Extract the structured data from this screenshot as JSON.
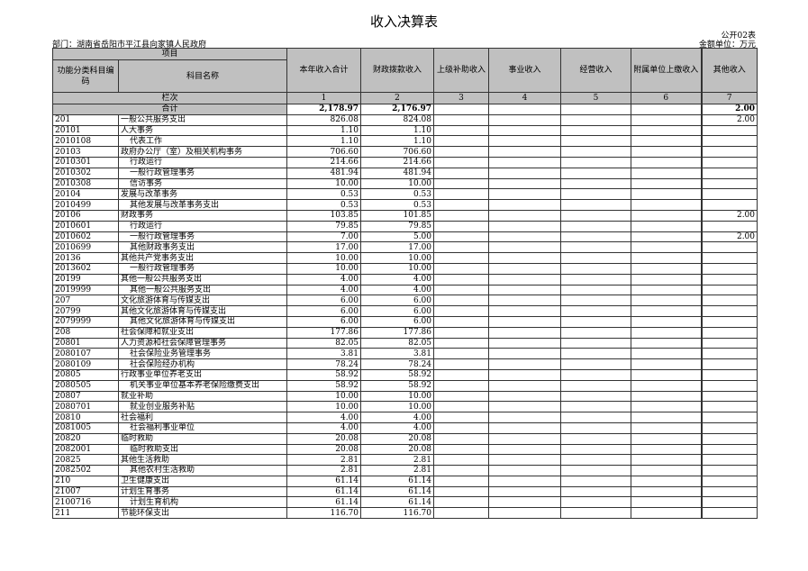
{
  "title": "收入决算表",
  "form_no": "公开02表",
  "department": "部门：湖南省岳阳市平江县向家镇人民政府",
  "unit": "金额单位：万元",
  "headers": {
    "item": "项目",
    "code": "功能分类科目编码",
    "name": "科目名称",
    "col1": "本年收入合计",
    "col2": "财政拨款收入",
    "col3": "上级补助收入",
    "col4": "事业收入",
    "col5": "经营收入",
    "col6": "附属单位上缴收入",
    "col7": "其他收入"
  },
  "column_index": {
    "label": "栏次",
    "nums": [
      "1",
      "2",
      "3",
      "4",
      "5",
      "6",
      "7"
    ]
  },
  "total": {
    "label": "合计",
    "col1": "2,178.97",
    "col2": "2,176.97",
    "col7": "2.00"
  },
  "rows": [
    [
      "201",
      "一般公共服务支出",
      0,
      "826.08",
      "824.08",
      "2.00"
    ],
    [
      "20101",
      "人大事务",
      0,
      "1.10",
      "1.10",
      ""
    ],
    [
      "2010108",
      "代表工作",
      1,
      "1.10",
      "1.10",
      ""
    ],
    [
      "20103",
      "政府办公厅（室）及相关机构事务",
      0,
      "706.60",
      "706.60",
      ""
    ],
    [
      "2010301",
      "行政运行",
      1,
      "214.66",
      "214.66",
      ""
    ],
    [
      "2010302",
      "一般行政管理事务",
      1,
      "481.94",
      "481.94",
      ""
    ],
    [
      "2010308",
      "信访事务",
      1,
      "10.00",
      "10.00",
      ""
    ],
    [
      "20104",
      "发展与改革事务",
      0,
      "0.53",
      "0.53",
      ""
    ],
    [
      "2010499",
      "其他发展与改革事务支出",
      1,
      "0.53",
      "0.53",
      ""
    ],
    [
      "20106",
      "财政事务",
      0,
      "103.85",
      "101.85",
      "2.00"
    ],
    [
      "2010601",
      "行政运行",
      1,
      "79.85",
      "79.85",
      ""
    ],
    [
      "2010602",
      "一般行政管理事务",
      1,
      "7.00",
      "5.00",
      "2.00"
    ],
    [
      "2010699",
      "其他财政事务支出",
      1,
      "17.00",
      "17.00",
      ""
    ],
    [
      "20136",
      "其他共产党事务支出",
      0,
      "10.00",
      "10.00",
      ""
    ],
    [
      "2013602",
      "一般行政管理事务",
      1,
      "10.00",
      "10.00",
      ""
    ],
    [
      "20199",
      "其他一般公共服务支出",
      0,
      "4.00",
      "4.00",
      ""
    ],
    [
      "2019999",
      "其他一般公共服务支出",
      1,
      "4.00",
      "4.00",
      ""
    ],
    [
      "207",
      "文化旅游体育与传媒支出",
      0,
      "6.00",
      "6.00",
      ""
    ],
    [
      "20799",
      "其他文化旅游体育与传媒支出",
      0,
      "6.00",
      "6.00",
      ""
    ],
    [
      "2079999",
      "其他文化旅游体育与传媒支出",
      1,
      "6.00",
      "6.00",
      ""
    ],
    [
      "208",
      "社会保障和就业支出",
      0,
      "177.86",
      "177.86",
      ""
    ],
    [
      "20801",
      "人力资源和社会保障管理事务",
      0,
      "82.05",
      "82.05",
      ""
    ],
    [
      "2080107",
      "社会保险业务管理事务",
      1,
      "3.81",
      "3.81",
      ""
    ],
    [
      "2080109",
      "社会保险经办机构",
      1,
      "78.24",
      "78.24",
      ""
    ],
    [
      "20805",
      "行政事业单位养老支出",
      0,
      "58.92",
      "58.92",
      ""
    ],
    [
      "2080505",
      "机关事业单位基本养老保险缴费支出",
      1,
      "58.92",
      "58.92",
      ""
    ],
    [
      "20807",
      "就业补助",
      0,
      "10.00",
      "10.00",
      ""
    ],
    [
      "2080701",
      "就业创业服务补贴",
      1,
      "10.00",
      "10.00",
      ""
    ],
    [
      "20810",
      "社会福利",
      0,
      "4.00",
      "4.00",
      ""
    ],
    [
      "2081005",
      "社会福利事业单位",
      1,
      "4.00",
      "4.00",
      ""
    ],
    [
      "20820",
      "临时救助",
      0,
      "20.08",
      "20.08",
      ""
    ],
    [
      "2082001",
      "临时救助支出",
      1,
      "20.08",
      "20.08",
      ""
    ],
    [
      "20825",
      "其他生活救助",
      0,
      "2.81",
      "2.81",
      ""
    ],
    [
      "2082502",
      "其他农村生活救助",
      1,
      "2.81",
      "2.81",
      ""
    ],
    [
      "210",
      "卫生健康支出",
      0,
      "61.14",
      "61.14",
      ""
    ],
    [
      "21007",
      "计划生育事务",
      0,
      "61.14",
      "61.14",
      ""
    ],
    [
      "2100716",
      "计划生育机构",
      1,
      "61.14",
      "61.14",
      ""
    ],
    [
      "211",
      "节能环保支出",
      0,
      "116.70",
      "116.70",
      ""
    ]
  ]
}
